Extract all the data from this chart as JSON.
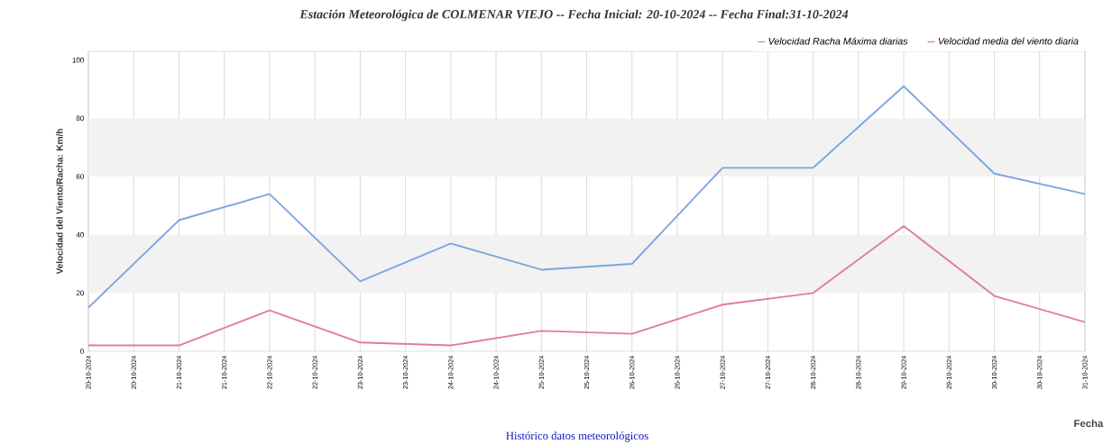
{
  "chart_data": {
    "type": "line",
    "title": "Estación Meteorológica de COLMENAR VIEJO -- Fecha Inicial: 20-10-2024 -- Fecha Final:31-10-2024",
    "xlabel": "Fecha",
    "ylabel": "Velocidad del Viento/Racha: Km/h",
    "annotations": [
      "Histórico datos meteorológicos"
    ],
    "x": [
      "2024-10-20",
      "2024-10-21",
      "2024-10-22",
      "2024-10-23",
      "2024-10-24",
      "2024-10-25",
      "2024-10-26",
      "2024-10-27",
      "2024-10-28",
      "2024-10-29",
      "2024-10-30",
      "2024-10-31"
    ],
    "series": [
      {
        "name": "Velocidad Racha Máxima diarias",
        "color": "#7ba7de",
        "values": [
          15,
          45,
          54,
          24,
          37,
          28,
          30,
          63,
          63,
          91,
          61,
          54
        ]
      },
      {
        "name": "Velocidad media del viento diaria",
        "color": "#e07aa8",
        "values": [
          2,
          2,
          14,
          3,
          2,
          7,
          6,
          16,
          20,
          43,
          19,
          10
        ]
      }
    ],
    "xlim": [
      "2024-10-20",
      "2024-10-31"
    ],
    "xticks": [
      {
        "value": "2024-10-20T00:00",
        "label": "20-10-2024"
      },
      {
        "value": "2024-10-20T12:00",
        "label": "20-10-2024"
      },
      {
        "value": "2024-10-21T00:00",
        "label": "21-10-2024"
      },
      {
        "value": "2024-10-21T12:00",
        "label": "21-10-2024"
      },
      {
        "value": "2024-10-22T00:00",
        "label": "22-10-2024"
      },
      {
        "value": "2024-10-22T12:00",
        "label": "22-10-2024"
      },
      {
        "value": "2024-10-23T00:00",
        "label": "23-10-2024"
      },
      {
        "value": "2024-10-23T12:00",
        "label": "23-10-2024"
      },
      {
        "value": "2024-10-24T00:00",
        "label": "24-10-2024"
      },
      {
        "value": "2024-10-24T12:00",
        "label": "24-10-2024"
      },
      {
        "value": "2024-10-25T00:00",
        "label": "25-10-2024"
      },
      {
        "value": "2024-10-25T12:00",
        "label": "25-10-2024"
      },
      {
        "value": "2024-10-26T00:00",
        "label": "26-10-2024"
      },
      {
        "value": "2024-10-26T12:00",
        "label": "26-10-2024"
      },
      {
        "value": "2024-10-27T00:00",
        "label": "27-10-2024"
      },
      {
        "value": "2024-10-27T12:00",
        "label": "27-10-2024"
      },
      {
        "value": "2024-10-28T00:00",
        "label": "28-10-2024"
      },
      {
        "value": "2024-10-28T12:00",
        "label": "28-10-2024"
      },
      {
        "value": "2024-10-29T00:00",
        "label": "29-10-2024"
      },
      {
        "value": "2024-10-29T12:00",
        "label": "29-10-2024"
      },
      {
        "value": "2024-10-30T00:00",
        "label": "30-10-2024"
      },
      {
        "value": "2024-10-30T12:00",
        "label": "30-10-2024"
      },
      {
        "value": "2024-10-31T00:00",
        "label": "31-10-2024"
      }
    ],
    "ylim": [
      0,
      103
    ],
    "yticks": [
      0,
      20,
      40,
      60,
      80,
      100
    ],
    "bands": [
      {
        "axis": "y",
        "from": 20,
        "to": 40,
        "color": "#f2f2f2"
      },
      {
        "axis": "y",
        "from": 60,
        "to": 80,
        "color": "#f2f2f2"
      }
    ],
    "grid": "x",
    "legend": "top right",
    "marker": "none",
    "line_style": "solid"
  }
}
